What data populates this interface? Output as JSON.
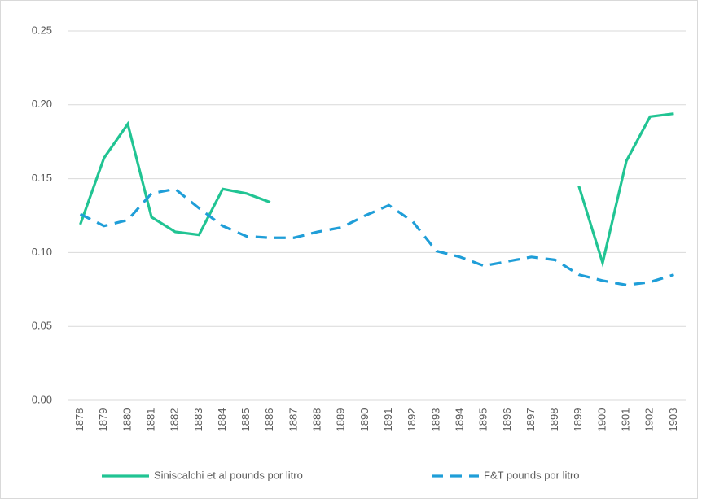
{
  "chart_data": {
    "type": "line",
    "categories": [
      "1878",
      "1879",
      "1880",
      "1881",
      "1882",
      "1883",
      "1884",
      "1885",
      "1886",
      "1887",
      "1888",
      "1889",
      "1890",
      "1891",
      "1892",
      "1893",
      "1894",
      "1895",
      "1896",
      "1897",
      "1898",
      "1899",
      "1900",
      "1901",
      "1902",
      "1903"
    ],
    "series": [
      {
        "name": "Siniscalchi et al pounds por litro",
        "color": "#21c493",
        "dash": false,
        "values": [
          0.119,
          0.164,
          0.187,
          0.124,
          0.114,
          0.112,
          0.143,
          0.14,
          0.134,
          null,
          null,
          null,
          null,
          null,
          null,
          null,
          null,
          null,
          null,
          null,
          null,
          0.145,
          0.093,
          0.162,
          0.192,
          0.194
        ]
      },
      {
        "name": "F&T pounds por litro",
        "color": "#1f9ed8",
        "dash": true,
        "values": [
          0.126,
          0.118,
          0.122,
          0.14,
          0.143,
          0.13,
          0.118,
          0.111,
          0.11,
          0.11,
          0.114,
          0.117,
          0.125,
          0.132,
          0.121,
          0.101,
          0.097,
          0.091,
          0.094,
          0.097,
          0.095,
          0.085,
          0.081,
          0.078,
          0.08,
          0.085
        ]
      }
    ],
    "ylim": [
      0,
      0.25
    ],
    "yticks": [
      {
        "value": 0,
        "label": "0.00"
      },
      {
        "value": 0.05,
        "label": "0.05"
      },
      {
        "value": 0.1,
        "label": "0.10"
      },
      {
        "value": 0.15,
        "label": "0.15"
      },
      {
        "value": 0.2,
        "label": "0.20"
      },
      {
        "value": 0.25,
        "label": "0.25"
      }
    ],
    "grid": true,
    "legend": "bottom"
  }
}
